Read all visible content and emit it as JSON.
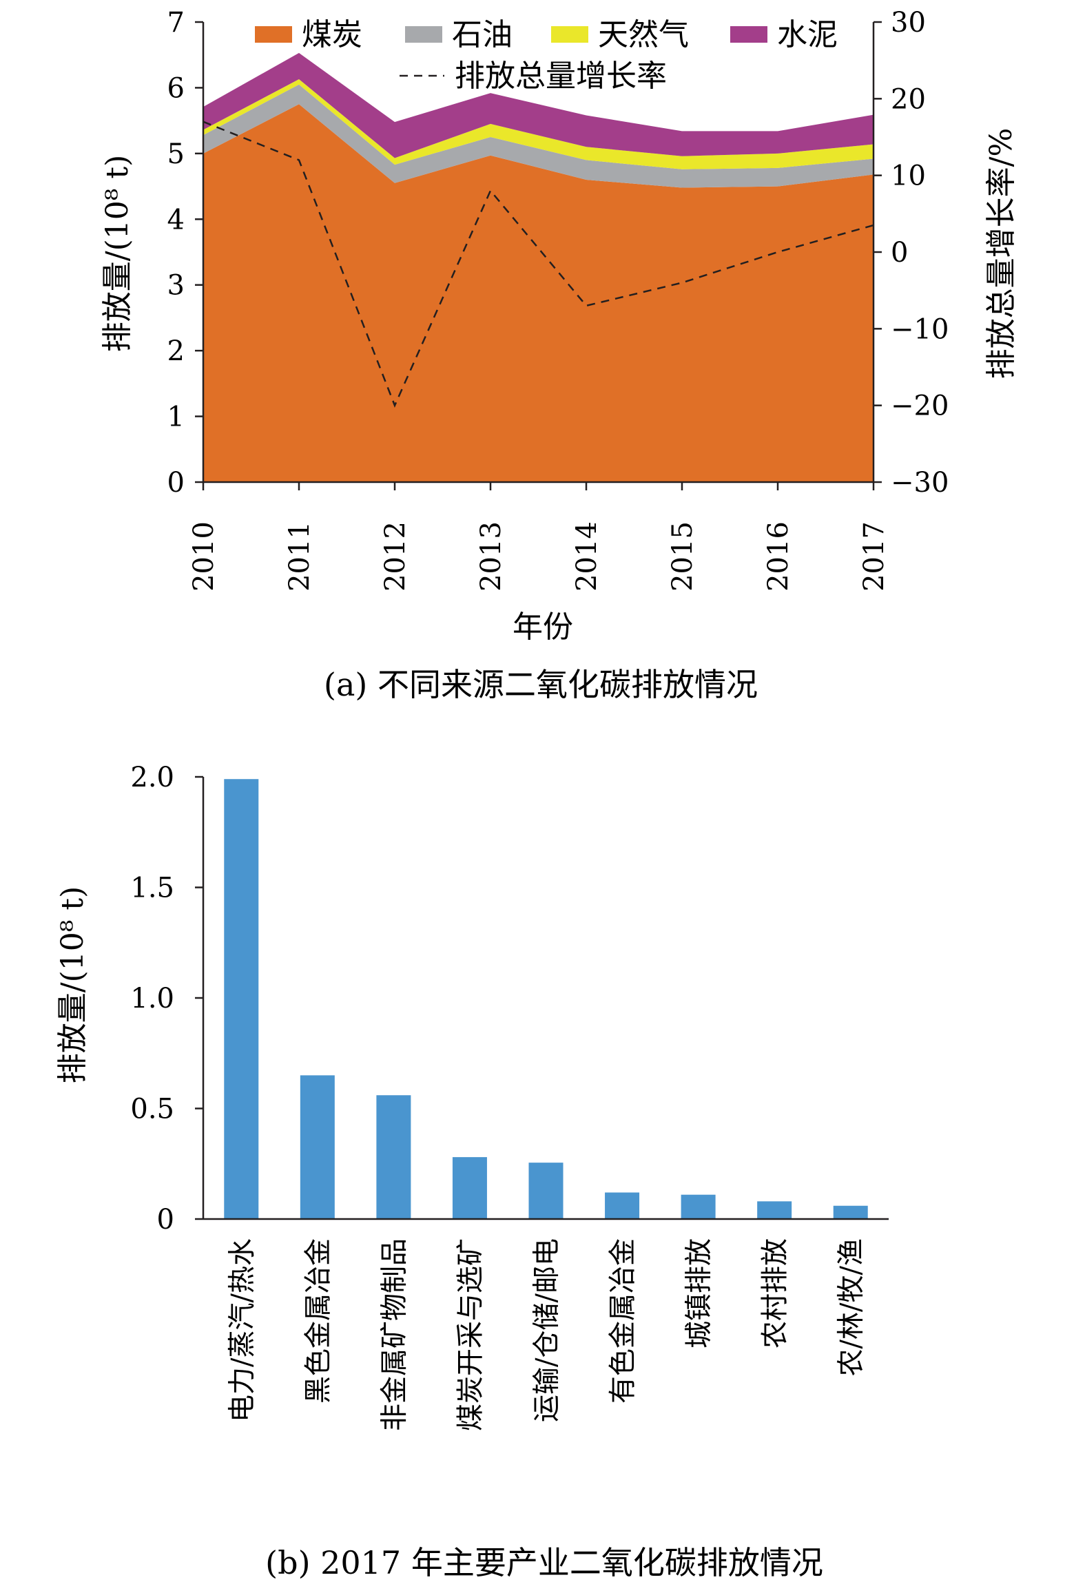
{
  "chart_data": [
    {
      "type": "area",
      "stacked": true,
      "caption": "(a) 不同来源二氧化碳排放情况",
      "xlabel": "年份",
      "ylabel": "排放量/(10⁸ t)",
      "y2label": "排放总量增长率/%",
      "categories": [
        "2010",
        "2011",
        "2012",
        "2013",
        "2014",
        "2015",
        "2016",
        "2017"
      ],
      "ylim": [
        0,
        7
      ],
      "yticks": [
        "0",
        "1",
        "2",
        "3",
        "4",
        "5",
        "6",
        "7"
      ],
      "y2lim": [
        -30,
        30
      ],
      "y2ticks": [
        "30",
        "20",
        "10",
        "0",
        "−10",
        "−20",
        "−30"
      ],
      "legend_position": "top",
      "series": [
        {
          "name": "煤炭",
          "color": "#e07027",
          "values": [
            5.0,
            5.75,
            4.55,
            4.97,
            4.6,
            4.48,
            4.5,
            4.68
          ]
        },
        {
          "name": "石油",
          "color": "#a7a9ac",
          "values": [
            0.28,
            0.3,
            0.28,
            0.28,
            0.3,
            0.28,
            0.28,
            0.24
          ]
        },
        {
          "name": "天然气",
          "color": "#eae72a",
          "values": [
            0.08,
            0.08,
            0.1,
            0.2,
            0.2,
            0.2,
            0.22,
            0.22
          ]
        },
        {
          "name": "水泥",
          "color": "#a33e8a",
          "values": [
            0.35,
            0.4,
            0.55,
            0.47,
            0.48,
            0.38,
            0.34,
            0.45
          ]
        }
      ],
      "growth_series": {
        "name": "排放总量增长率",
        "color": "#231f20",
        "values": [
          17,
          12,
          -20,
          8,
          -7,
          -4,
          0,
          3.5
        ]
      }
    },
    {
      "type": "bar",
      "caption": "(b) 2017 年主要产业二氧化碳排放情况",
      "ylabel": "排放量/(10⁸ t)",
      "categories": [
        "电力/蒸汽/热水",
        "黑色金属冶金",
        "非金属矿物制品",
        "煤炭开采与选矿",
        "运输/仓储/邮电",
        "有色金属冶金",
        "城镇排放",
        "农村排放",
        "农/林/牧/渔"
      ],
      "values": [
        1.99,
        0.65,
        0.56,
        0.28,
        0.255,
        0.12,
        0.11,
        0.08,
        0.06
      ],
      "ylim": [
        0,
        2.0
      ],
      "yticks": [
        "0",
        "0.5",
        "1.0",
        "1.5",
        "2.0"
      ],
      "bar_color": "#4a95cf"
    }
  ]
}
